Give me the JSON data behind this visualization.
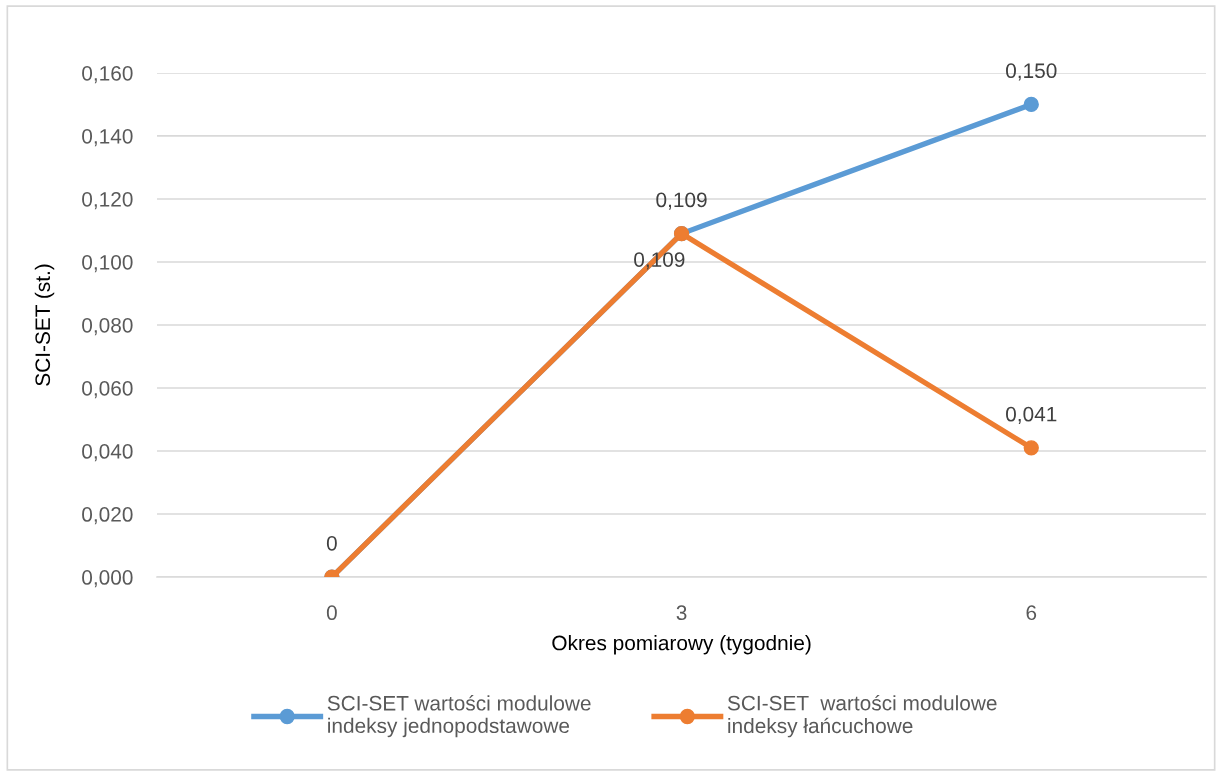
{
  "chart_data": {
    "type": "line",
    "xlabel": "Okres pomiarowy (tygodnie)",
    "ylabel": "SCI-SET (st.)",
    "categories": [
      "0",
      "3",
      "6"
    ],
    "series": [
      {
        "name": "SCI-SET wartości modulowe\nindeksy jednopodstawowe",
        "color": "#5b9bd5",
        "values": [
          0,
          0.109,
          0.15
        ],
        "value_labels": [
          "0",
          "0,109",
          "0,150"
        ]
      },
      {
        "name": "SCI-SET  wartości modulowe\nindeksy łańcuchowe",
        "color": "#ed7d31",
        "values": [
          0,
          0.109,
          0.041
        ],
        "value_labels": [
          null,
          "0,109",
          "0,041"
        ]
      }
    ],
    "ylim": [
      0,
      0.16
    ],
    "yticks": [
      {
        "value": 0,
        "label": "0,000"
      },
      {
        "value": 0.02,
        "label": "0,020"
      },
      {
        "value": 0.04,
        "label": "0,040"
      },
      {
        "value": 0.06,
        "label": "0,060"
      },
      {
        "value": 0.08,
        "label": "0,080"
      },
      {
        "value": 0.1,
        "label": "0,100"
      },
      {
        "value": 0.12,
        "label": "0,120"
      },
      {
        "value": 0.14,
        "label": "0,140"
      },
      {
        "value": 0.16,
        "label": "0,160"
      }
    ],
    "grid": "y",
    "legend": "bottom",
    "marker": "circle",
    "line_style": "solid"
  }
}
